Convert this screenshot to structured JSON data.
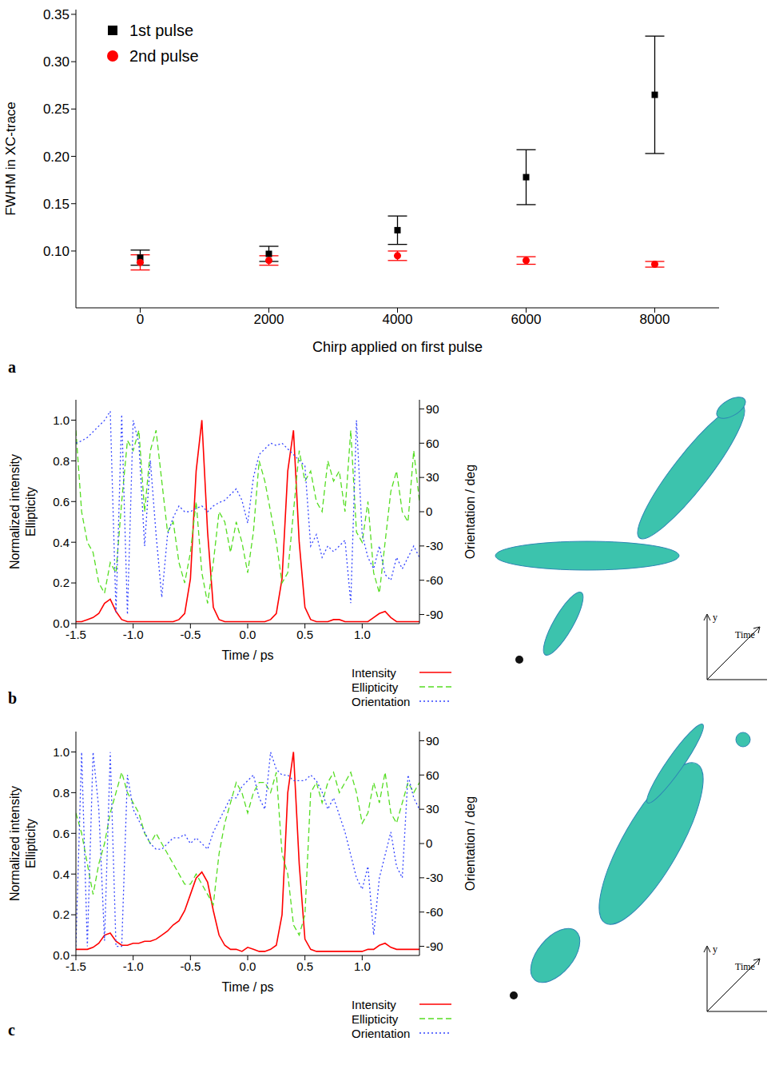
{
  "chart_data": [
    {
      "type": "scatter",
      "panel": "a",
      "x_label": "Chirp applied on first pulse",
      "y_label": "FWHM in XC-trace",
      "x": [
        0,
        2000,
        4000,
        6000,
        8000
      ],
      "xlim": [
        -1000,
        9000
      ],
      "xticks": [
        0,
        2000,
        4000,
        6000,
        8000
      ],
      "ylim": [
        0.04,
        0.355
      ],
      "yticks": [
        {
          "value": 0.1,
          "label": "0.10"
        },
        0.15,
        {
          "value": 0.2,
          "label": "0.20"
        },
        0.25,
        {
          "value": 0.3,
          "label": "0.30"
        },
        0.35
      ],
      "legend": "top-left",
      "series": [
        {
          "name": "1st pulse",
          "color": "#000000",
          "marker": "square",
          "values": [
            0.093,
            0.097,
            0.122,
            0.178,
            0.265
          ],
          "errors": [
            0.008,
            0.008,
            0.015,
            0.029,
            0.062
          ]
        },
        {
          "name": "2nd pulse",
          "color": "#ff0000",
          "marker": "circle",
          "values": [
            0.088,
            0.09,
            0.095,
            0.09,
            0.086
          ],
          "errors": [
            0.008,
            0.005,
            0.005,
            0.004,
            0.003
          ]
        }
      ]
    },
    {
      "type": "line",
      "panel": "b",
      "x_label": "Time / ps",
      "y_label": [
        "Normalized intensity",
        "Ellipticity"
      ],
      "y2_label": "Orientation / deg",
      "inset_axis_labels": {
        "y": "y",
        "time": "Time"
      },
      "x": [
        -1.5,
        -1.45,
        -1.4,
        -1.35,
        -1.3,
        -1.25,
        -1.2,
        -1.15,
        -1.1,
        -1.05,
        -1.0,
        -0.95,
        -0.9,
        -0.85,
        -0.8,
        -0.75,
        -0.7,
        -0.65,
        -0.6,
        -0.55,
        -0.5,
        -0.45,
        -0.4,
        -0.35,
        -0.3,
        -0.25,
        -0.2,
        -0.15,
        -0.1,
        -0.05,
        0,
        0.05,
        0.1,
        0.15,
        0.2,
        0.25,
        0.3,
        0.35,
        0.4,
        0.45,
        0.5,
        0.55,
        0.6,
        0.65,
        0.7,
        0.75,
        0.8,
        0.85,
        0.9,
        0.95,
        1.0,
        1.05,
        1.1,
        1.15,
        1.2,
        1.25,
        1.3,
        1.35,
        1.4,
        1.45,
        1.5
      ],
      "xlim": [
        -1.5,
        1.5
      ],
      "xticks": [
        -1.5,
        {
          "value": -1,
          "label": "-1.0"
        },
        -0.5,
        {
          "value": 0,
          "label": "0.0"
        },
        0.5,
        {
          "value": 1,
          "label": "1.0"
        }
      ],
      "ylim": [
        0,
        1.1
      ],
      "yticks": [
        {
          "value": 0,
          "label": "0.0"
        },
        0.2,
        0.4,
        0.6,
        0.8,
        {
          "value": 1,
          "label": "1.0"
        }
      ],
      "y2lim": [
        -98,
        98
      ],
      "y2ticks": [
        -90,
        -60,
        -30,
        0,
        30,
        60,
        90
      ],
      "legend": "bottom-right",
      "series": [
        {
          "name": "Intensity",
          "color": "#ff0000",
          "line_style": "solid",
          "values": [
            0.01,
            0.01,
            0.02,
            0.03,
            0.05,
            0.1,
            0.12,
            0.06,
            0.02,
            0.01,
            0.01,
            0.01,
            0.01,
            0.01,
            0.01,
            0.01,
            0.01,
            0.01,
            0.02,
            0.05,
            0.22,
            0.75,
            1.0,
            0.45,
            0.08,
            0.02,
            0.01,
            0.01,
            0.01,
            0.01,
            0.01,
            0.01,
            0.01,
            0.01,
            0.02,
            0.05,
            0.22,
            0.75,
            0.95,
            0.4,
            0.08,
            0.02,
            0.01,
            0.01,
            0.01,
            0.02,
            0.02,
            0.01,
            0.01,
            0.01,
            0.01,
            0.01,
            0.03,
            0.05,
            0.06,
            0.03,
            0.01,
            0.01,
            0.01,
            0.01,
            0.01
          ]
        },
        {
          "name": "Ellipticity",
          "color": "#55dd22",
          "line_style": "dashed",
          "values": [
            0.95,
            0.55,
            0.4,
            0.35,
            0.2,
            0.15,
            0.3,
            0.25,
            0.6,
            0.9,
            0.85,
            0.95,
            0.55,
            0.85,
            0.95,
            0.7,
            0.45,
            0.5,
            0.3,
            0.2,
            0.35,
            0.6,
            0.25,
            0.1,
            0.3,
            0.55,
            0.5,
            0.35,
            0.5,
            0.4,
            0.25,
            0.45,
            0.8,
            0.7,
            0.55,
            0.4,
            0.2,
            0.25,
            0.55,
            0.85,
            0.7,
            0.75,
            0.6,
            0.55,
            0.8,
            0.7,
            0.75,
            0.55,
            0.95,
            0.45,
            0.4,
            0.6,
            0.25,
            0.15,
            0.4,
            0.65,
            0.75,
            0.55,
            0.5,
            0.85,
            0.6
          ]
        },
        {
          "name": "Orientation",
          "color": "#3344ff",
          "line_style": "dotted",
          "axis": "y2",
          "values": [
            60,
            62,
            65,
            70,
            75,
            80,
            88,
            -88,
            85,
            -90,
            80,
            60,
            -30,
            45,
            -20,
            -75,
            -20,
            -5,
            5,
            0,
            0,
            3,
            5,
            0,
            5,
            8,
            10,
            15,
            20,
            10,
            -10,
            30,
            50,
            55,
            60,
            58,
            60,
            55,
            50,
            45,
            40,
            -30,
            -20,
            -40,
            -30,
            -35,
            -30,
            -25,
            -80,
            80,
            -20,
            -40,
            -50,
            -30,
            -55,
            -60,
            -40,
            -50,
            -40,
            -30,
            -40
          ]
        }
      ]
    },
    {
      "type": "line",
      "panel": "c",
      "x_label": "Time / ps",
      "y_label": [
        "Normalized intensity",
        "Ellipticity"
      ],
      "y2_label": "Orientation / deg",
      "inset_axis_labels": {
        "y": "y",
        "time": "Time"
      },
      "x": [
        -1.5,
        -1.45,
        -1.4,
        -1.35,
        -1.3,
        -1.25,
        -1.2,
        -1.15,
        -1.1,
        -1.05,
        -1.0,
        -0.95,
        -0.9,
        -0.85,
        -0.8,
        -0.75,
        -0.7,
        -0.65,
        -0.6,
        -0.55,
        -0.5,
        -0.45,
        -0.4,
        -0.35,
        -0.3,
        -0.25,
        -0.2,
        -0.15,
        -0.1,
        -0.05,
        0,
        0.05,
        0.1,
        0.15,
        0.2,
        0.25,
        0.3,
        0.35,
        0.4,
        0.45,
        0.5,
        0.55,
        0.6,
        0.65,
        0.7,
        0.75,
        0.8,
        0.85,
        0.9,
        0.95,
        1.0,
        1.05,
        1.1,
        1.15,
        1.2,
        1.25,
        1.3,
        1.35,
        1.4,
        1.45,
        1.5
      ],
      "xlim": [
        -1.5,
        1.5
      ],
      "xticks": [
        -1.5,
        {
          "value": -1,
          "label": "-1.0"
        },
        -0.5,
        {
          "value": 0,
          "label": "0.0"
        },
        0.5,
        {
          "value": 1,
          "label": "1.0"
        }
      ],
      "ylim": [
        0,
        1.1
      ],
      "yticks": [
        {
          "value": 0,
          "label": "0.0"
        },
        0.2,
        0.4,
        0.6,
        0.8,
        {
          "value": 1,
          "label": "1.0"
        }
      ],
      "y2lim": [
        -98,
        98
      ],
      "y2ticks": [
        -90,
        -60,
        -30,
        0,
        30,
        60,
        90
      ],
      "legend": "bottom-right",
      "series": [
        {
          "name": "Intensity",
          "color": "#ff0000",
          "line_style": "solid",
          "values": [
            0.03,
            0.03,
            0.03,
            0.04,
            0.06,
            0.1,
            0.11,
            0.07,
            0.05,
            0.05,
            0.06,
            0.06,
            0.07,
            0.07,
            0.08,
            0.1,
            0.12,
            0.15,
            0.17,
            0.22,
            0.3,
            0.38,
            0.41,
            0.36,
            0.22,
            0.1,
            0.05,
            0.03,
            0.03,
            0.02,
            0.04,
            0.03,
            0.02,
            0.02,
            0.03,
            0.05,
            0.2,
            0.8,
            1.0,
            0.45,
            0.08,
            0.03,
            0.02,
            0.02,
            0.02,
            0.02,
            0.02,
            0.02,
            0.02,
            0.02,
            0.02,
            0.03,
            0.03,
            0.05,
            0.06,
            0.04,
            0.03,
            0.03,
            0.03,
            0.03,
            0.03
          ]
        },
        {
          "name": "Ellipticity",
          "color": "#55dd22",
          "line_style": "dashed",
          "values": [
            0.7,
            0.6,
            0.45,
            0.3,
            0.45,
            0.55,
            0.7,
            0.8,
            0.9,
            0.8,
            0.75,
            0.7,
            0.6,
            0.55,
            0.6,
            0.55,
            0.5,
            0.45,
            0.4,
            0.35,
            0.35,
            0.4,
            0.35,
            0.3,
            0.25,
            0.5,
            0.65,
            0.75,
            0.85,
            0.8,
            0.7,
            0.8,
            0.85,
            0.85,
            0.8,
            0.9,
            0.5,
            0.4,
            0.15,
            0.1,
            0.2,
            0.8,
            0.85,
            0.75,
            0.85,
            0.9,
            0.8,
            0.85,
            0.9,
            0.8,
            0.65,
            0.7,
            0.85,
            0.75,
            0.9,
            0.7,
            0.65,
            0.75,
            0.85,
            0.8,
            0.85
          ]
        },
        {
          "name": "Orientation",
          "color": "#3344ff",
          "line_style": "dotted",
          "axis": "y2",
          "values": [
            -90,
            80,
            -90,
            80,
            30,
            -85,
            80,
            -90,
            -90,
            60,
            30,
            20,
            10,
            0,
            -5,
            -5,
            0,
            5,
            5,
            8,
            0,
            5,
            0,
            -5,
            10,
            20,
            30,
            40,
            40,
            50,
            55,
            60,
            40,
            30,
            80,
            65,
            60,
            60,
            55,
            55,
            55,
            60,
            55,
            45,
            30,
            40,
            25,
            10,
            -10,
            -30,
            -40,
            -20,
            -80,
            -30,
            -10,
            10,
            -20,
            -30,
            60,
            40,
            30
          ]
        }
      ]
    }
  ]
}
